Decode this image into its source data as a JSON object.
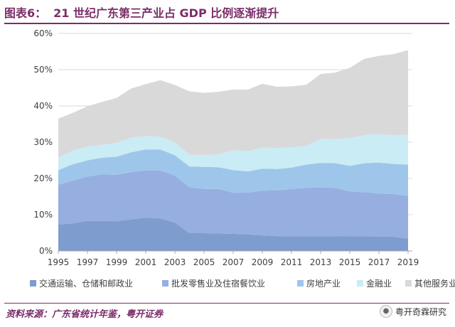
{
  "title": {
    "label": "图表6：",
    "text": "21 世纪广东第三产业占 GDP 比例逐渐提升"
  },
  "chart_data": {
    "type": "area",
    "stacked": true,
    "title": "21 世纪广东第三产业占 GDP 比例逐渐提升",
    "xlabel": "",
    "ylabel": "",
    "x": [
      1995,
      1996,
      1997,
      1998,
      1999,
      2000,
      2001,
      2002,
      2003,
      2004,
      2005,
      2006,
      2007,
      2008,
      2009,
      2010,
      2011,
      2012,
      2013,
      2014,
      2015,
      2016,
      2017,
      2018,
      2019
    ],
    "x_tick_labels": [
      "1995",
      "1997",
      "1999",
      "2001",
      "2003",
      "2005",
      "2007",
      "2009",
      "2011",
      "2013",
      "2015",
      "2017",
      "2019"
    ],
    "y_tick_labels": [
      "0%",
      "10%",
      "20%",
      "30%",
      "40%",
      "50%",
      "60%"
    ],
    "ylim": [
      0,
      60
    ],
    "grid": true,
    "legend_position": "bottom",
    "series": [
      {
        "name": "交通运输、仓储和邮政业",
        "color": "#7f9ccf",
        "values": [
          7.3,
          7.6,
          8.3,
          8.3,
          8.2,
          8.7,
          9.2,
          9.0,
          7.8,
          4.9,
          4.9,
          4.8,
          4.7,
          4.6,
          4.3,
          4.1,
          4.0,
          4.1,
          4.0,
          4.1,
          4.1,
          4.0,
          4.0,
          3.9,
          3.4
        ]
      },
      {
        "name": "批发零售业及住宿餐饮业",
        "color": "#96aee0",
        "values": [
          11.0,
          11.8,
          12.2,
          12.8,
          12.8,
          13.0,
          13.0,
          13.2,
          13.0,
          12.6,
          12.2,
          12.3,
          11.3,
          11.5,
          12.3,
          12.6,
          13.0,
          13.3,
          13.5,
          13.3,
          12.3,
          12.2,
          11.8,
          11.8,
          11.8
        ]
      },
      {
        "name": "房地产业",
        "color": "#9ec6ea",
        "values": [
          4.0,
          4.5,
          4.5,
          4.6,
          5.0,
          5.5,
          5.8,
          5.8,
          5.6,
          5.8,
          6.1,
          6.0,
          6.3,
          5.8,
          6.1,
          5.9,
          6.0,
          6.4,
          6.8,
          6.8,
          7.1,
          8.0,
          8.6,
          8.3,
          8.6
        ]
      },
      {
        "name": "金融业",
        "color": "#c9ecf5",
        "values": [
          3.5,
          3.8,
          3.8,
          3.6,
          3.8,
          4.1,
          3.7,
          3.5,
          3.6,
          3.2,
          3.2,
          3.6,
          5.5,
          5.6,
          5.8,
          5.8,
          5.6,
          5.2,
          6.6,
          6.6,
          7.7,
          7.7,
          7.9,
          7.9,
          8.3
        ]
      },
      {
        "name": "其他服务业",
        "color": "#d9d9d9",
        "values": [
          10.7,
          10.4,
          11.1,
          11.8,
          12.4,
          13.5,
          14.3,
          15.6,
          15.8,
          17.5,
          17.2,
          17.2,
          16.7,
          17.0,
          17.6,
          16.9,
          16.8,
          16.8,
          17.9,
          18.4,
          19.3,
          21.1,
          21.5,
          22.4,
          23.3
        ]
      }
    ]
  },
  "footer": {
    "source": "资料来源：广东省统计年鉴，粤开证券",
    "brand": "粤开奇霖研究",
    "brand_icon": "wechat-icon"
  }
}
